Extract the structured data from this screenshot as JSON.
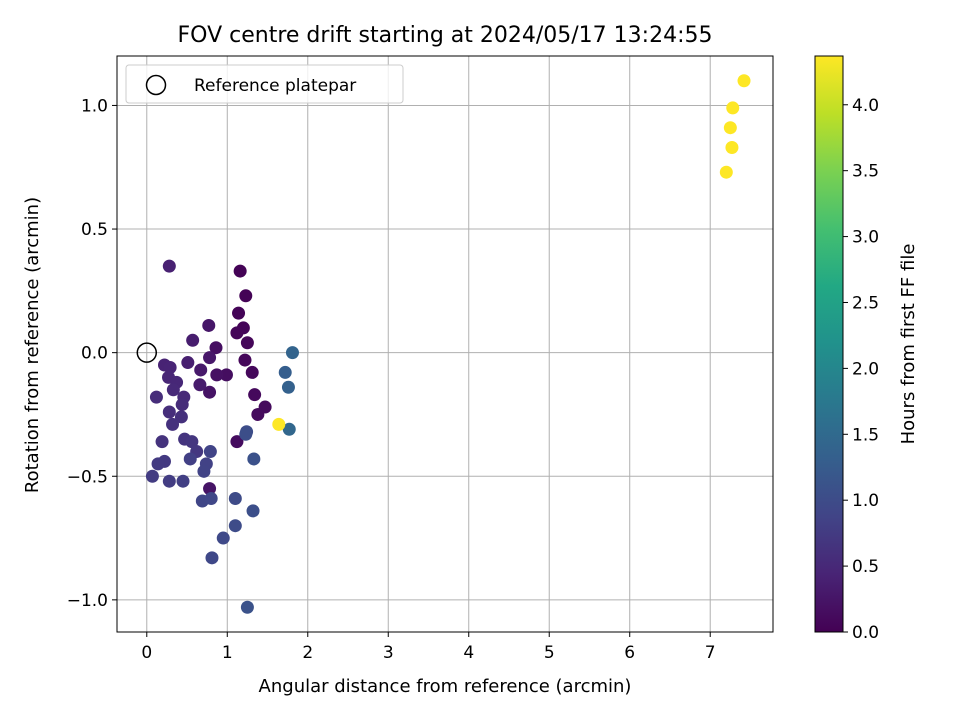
{
  "chart_data": {
    "type": "scatter",
    "title": "FOV centre drift starting at 2024/05/17 13:24:55",
    "xlabel": "Angular distance from reference (arcmin)",
    "ylabel": "Rotation from reference (arcmin)",
    "xlim": [
      -0.37,
      7.78
    ],
    "ylim": [
      -1.13,
      1.2
    ],
    "xticks": [
      0,
      1,
      2,
      3,
      4,
      5,
      6,
      7
    ],
    "xtick_labels": [
      "0",
      "1",
      "2",
      "3",
      "4",
      "5",
      "6",
      "7"
    ],
    "yticks": [
      -1.0,
      -0.5,
      0.0,
      0.5,
      1.0
    ],
    "ytick_labels": [
      "−1.0",
      "−0.5",
      "0.0",
      "0.5",
      "1.0"
    ],
    "grid": true,
    "legend": {
      "placement": "top-left",
      "entries": [
        "Reference platepar"
      ]
    },
    "reference_point": {
      "x": 0.0,
      "y": 0.0
    },
    "colorbar": {
      "label": "Hours from first FF file",
      "colormap": "viridis",
      "range": [
        0.0,
        4.37
      ],
      "ticks": [
        0.0,
        0.5,
        1.0,
        1.5,
        2.0,
        2.5,
        3.0,
        3.5,
        4.0
      ],
      "tick_labels": [
        "0.0",
        "0.5",
        "1.0",
        "1.5",
        "2.0",
        "2.5",
        "3.0",
        "3.5",
        "4.0"
      ]
    },
    "points": [
      {
        "x": 1.16,
        "y": 0.33,
        "c": 0.02
      },
      {
        "x": 1.23,
        "y": 0.23,
        "c": 0.03
      },
      {
        "x": 1.14,
        "y": 0.16,
        "c": 0.04
      },
      {
        "x": 1.2,
        "y": 0.1,
        "c": 0.05
      },
      {
        "x": 1.12,
        "y": 0.08,
        "c": 0.06
      },
      {
        "x": 1.25,
        "y": 0.04,
        "c": 0.07
      },
      {
        "x": 1.22,
        "y": -0.03,
        "c": 0.08
      },
      {
        "x": 1.31,
        "y": -0.08,
        "c": 0.09
      },
      {
        "x": 1.34,
        "y": -0.17,
        "c": 0.1
      },
      {
        "x": 1.47,
        "y": -0.22,
        "c": 0.11
      },
      {
        "x": 1.38,
        "y": -0.25,
        "c": 0.12
      },
      {
        "x": 1.12,
        "y": -0.36,
        "c": 0.14
      },
      {
        "x": 0.99,
        "y": -0.09,
        "c": 0.16
      },
      {
        "x": 0.86,
        "y": 0.02,
        "c": 0.18
      },
      {
        "x": 0.87,
        "y": -0.09,
        "c": 0.2
      },
      {
        "x": 0.78,
        "y": -0.16,
        "c": 0.22
      },
      {
        "x": 0.78,
        "y": -0.55,
        "c": 0.24
      },
      {
        "x": 0.77,
        "y": 0.11,
        "c": 0.26
      },
      {
        "x": 0.78,
        "y": -0.02,
        "c": 0.28
      },
      {
        "x": 0.67,
        "y": -0.07,
        "c": 0.3
      },
      {
        "x": 0.66,
        "y": -0.13,
        "c": 0.32
      },
      {
        "x": 0.57,
        "y": 0.05,
        "c": 0.35
      },
      {
        "x": 0.51,
        "y": -0.04,
        "c": 0.37
      },
      {
        "x": 0.28,
        "y": 0.35,
        "c": 0.4
      },
      {
        "x": 0.22,
        "y": -0.05,
        "c": 0.42
      },
      {
        "x": 0.29,
        "y": -0.06,
        "c": 0.44
      },
      {
        "x": 0.27,
        "y": -0.1,
        "c": 0.46
      },
      {
        "x": 0.37,
        "y": -0.12,
        "c": 0.48
      },
      {
        "x": 0.33,
        "y": -0.15,
        "c": 0.5
      },
      {
        "x": 0.46,
        "y": -0.18,
        "c": 0.52
      },
      {
        "x": 0.44,
        "y": -0.21,
        "c": 0.54
      },
      {
        "x": 0.12,
        "y": -0.18,
        "c": 0.56
      },
      {
        "x": 0.28,
        "y": -0.24,
        "c": 0.58
      },
      {
        "x": 0.43,
        "y": -0.26,
        "c": 0.6
      },
      {
        "x": 0.32,
        "y": -0.29,
        "c": 0.62
      },
      {
        "x": 0.19,
        "y": -0.36,
        "c": 0.64
      },
      {
        "x": 0.47,
        "y": -0.35,
        "c": 0.66
      },
      {
        "x": 0.56,
        "y": -0.36,
        "c": 0.68
      },
      {
        "x": 0.62,
        "y": -0.4,
        "c": 0.7
      },
      {
        "x": 0.22,
        "y": -0.44,
        "c": 0.72
      },
      {
        "x": 0.14,
        "y": -0.45,
        "c": 0.74
      },
      {
        "x": 0.07,
        "y": -0.5,
        "c": 0.76
      },
      {
        "x": 0.28,
        "y": -0.52,
        "c": 0.78
      },
      {
        "x": 0.45,
        "y": -0.52,
        "c": 0.8
      },
      {
        "x": 0.54,
        "y": -0.43,
        "c": 0.82
      },
      {
        "x": 0.74,
        "y": -0.45,
        "c": 0.84
      },
      {
        "x": 0.71,
        "y": -0.48,
        "c": 0.86
      },
      {
        "x": 0.79,
        "y": -0.4,
        "c": 0.88
      },
      {
        "x": 0.69,
        "y": -0.6,
        "c": 0.9
      },
      {
        "x": 0.8,
        "y": -0.59,
        "c": 0.92
      },
      {
        "x": 0.81,
        "y": -0.83,
        "c": 0.94
      },
      {
        "x": 0.95,
        "y": -0.75,
        "c": 0.96
      },
      {
        "x": 1.1,
        "y": -0.59,
        "c": 0.98
      },
      {
        "x": 1.1,
        "y": -0.7,
        "c": 1.0
      },
      {
        "x": 1.24,
        "y": -0.32,
        "c": 1.02
      },
      {
        "x": 1.23,
        "y": -0.33,
        "c": 1.04
      },
      {
        "x": 1.32,
        "y": -0.64,
        "c": 1.06
      },
      {
        "x": 1.33,
        "y": -0.43,
        "c": 1.08
      },
      {
        "x": 1.25,
        "y": -1.03,
        "c": 1.1
      },
      {
        "x": 1.72,
        "y": -0.08,
        "c": 1.3
      },
      {
        "x": 1.76,
        "y": -0.14,
        "c": 1.35
      },
      {
        "x": 1.81,
        "y": 0.0,
        "c": 1.4
      },
      {
        "x": 1.77,
        "y": -0.31,
        "c": 1.45
      },
      {
        "x": 1.64,
        "y": -0.29,
        "c": 4.37
      },
      {
        "x": 7.2,
        "y": 0.73,
        "c": 4.37
      },
      {
        "x": 7.27,
        "y": 0.83,
        "c": 4.37
      },
      {
        "x": 7.25,
        "y": 0.91,
        "c": 4.37
      },
      {
        "x": 7.28,
        "y": 0.99,
        "c": 4.37
      },
      {
        "x": 7.42,
        "y": 1.1,
        "c": 4.37
      }
    ]
  }
}
